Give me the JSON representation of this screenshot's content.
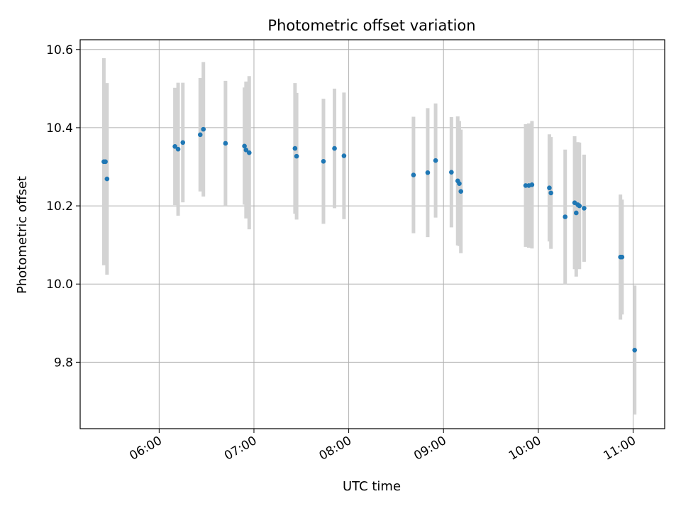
{
  "chart_data": {
    "type": "scatter",
    "title": "Photometric offset variation",
    "xlabel": "UTC time",
    "ylabel": "Photometric offset",
    "xlim": [
      "05:10",
      "11:20"
    ],
    "ylim": [
      9.63,
      10.625
    ],
    "grid": true,
    "x_ticks": [
      "06:00",
      "07:00",
      "08:00",
      "09:00",
      "10:00",
      "11:00"
    ],
    "y_ticks": [
      "9.8",
      "10.0",
      "10.2",
      "10.4",
      "10.6"
    ],
    "colors": {
      "point": "#1f77b4",
      "errorbar": "#d3d3d3",
      "grid": "#b0b0b0",
      "axes": "#000000"
    },
    "points": [
      {
        "t": "05:25",
        "y": 10.313,
        "err": 0.265
      },
      {
        "t": "05:26",
        "y": 10.313,
        "err": 0.2
      },
      {
        "t": "05:27",
        "y": 10.269,
        "err": 0.245
      },
      {
        "t": "06:10",
        "y": 10.352,
        "err": 0.15
      },
      {
        "t": "06:12",
        "y": 10.345,
        "err": 0.17
      },
      {
        "t": "06:15",
        "y": 10.362,
        "err": 0.153
      },
      {
        "t": "06:26",
        "y": 10.382,
        "err": 0.145
      },
      {
        "t": "06:28",
        "y": 10.396,
        "err": 0.172
      },
      {
        "t": "06:42",
        "y": 10.36,
        "err": 0.16
      },
      {
        "t": "06:54",
        "y": 10.353,
        "err": 0.15
      },
      {
        "t": "06:55",
        "y": 10.343,
        "err": 0.175
      },
      {
        "t": "06:57",
        "y": 10.336,
        "err": 0.196
      },
      {
        "t": "07:26",
        "y": 10.347,
        "err": 0.167
      },
      {
        "t": "07:27",
        "y": 10.327,
        "err": 0.162
      },
      {
        "t": "07:44",
        "y": 10.314,
        "err": 0.16
      },
      {
        "t": "07:51",
        "y": 10.347,
        "err": 0.153
      },
      {
        "t": "07:57",
        "y": 10.328,
        "err": 0.162
      },
      {
        "t": "08:41",
        "y": 10.279,
        "err": 0.149
      },
      {
        "t": "08:50",
        "y": 10.285,
        "err": 0.165
      },
      {
        "t": "08:55",
        "y": 10.316,
        "err": 0.146
      },
      {
        "t": "09:05",
        "y": 10.286,
        "err": 0.141
      },
      {
        "t": "09:09",
        "y": 10.264,
        "err": 0.165
      },
      {
        "t": "09:10",
        "y": 10.257,
        "err": 0.16
      },
      {
        "t": "09:11",
        "y": 10.237,
        "err": 0.158
      },
      {
        "t": "09:52",
        "y": 10.252,
        "err": 0.157
      },
      {
        "t": "09:54",
        "y": 10.252,
        "err": 0.159
      },
      {
        "t": "09:56",
        "y": 10.254,
        "err": 0.163
      },
      {
        "t": "10:07",
        "y": 10.246,
        "err": 0.137
      },
      {
        "t": "10:08",
        "y": 10.233,
        "err": 0.143
      },
      {
        "t": "10:17",
        "y": 10.172,
        "err": 0.172
      },
      {
        "t": "10:23",
        "y": 10.208,
        "err": 0.17
      },
      {
        "t": "10:24",
        "y": 10.182,
        "err": 0.163
      },
      {
        "t": "10:25",
        "y": 10.203,
        "err": 0.16
      },
      {
        "t": "10:26",
        "y": 10.2,
        "err": 0.162
      },
      {
        "t": "10:29",
        "y": 10.194,
        "err": 0.137
      },
      {
        "t": "10:52",
        "y": 10.069,
        "err": 0.16
      },
      {
        "t": "10:53",
        "y": 10.069,
        "err": 0.147
      },
      {
        "t": "11:01",
        "y": 9.831,
        "err": 0.165
      }
    ]
  }
}
